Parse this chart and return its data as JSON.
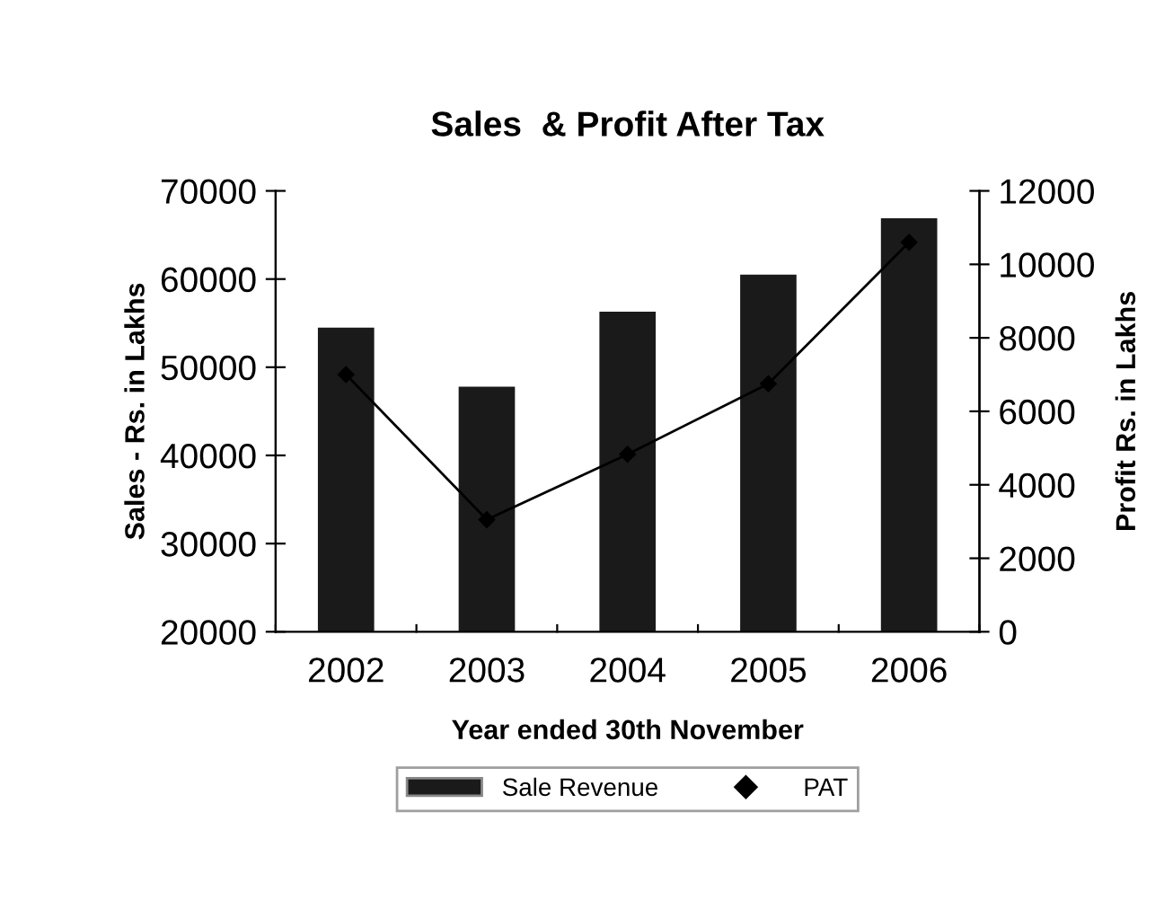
{
  "chart_data": {
    "type": "bar",
    "title": "Sales  & Profit After Tax",
    "xlabel": "Year ended 30th November",
    "ylabel": "Sales - Rs. in Lakhs",
    "y2label": "Profit Rs. in Lakhs",
    "categories": [
      "2002",
      "2003",
      "2004",
      "2005",
      "2006"
    ],
    "series": [
      {
        "name": "Sale Revenue",
        "color": "#1a1a1a",
        "values": [
          54500,
          47800,
          56300,
          60500,
          66900
        ]
      },
      {
        "name": "PAT",
        "type": "line",
        "axis": "y2",
        "color": "#000000",
        "marker": "diamond",
        "values": [
          7000,
          3050,
          4830,
          6750,
          10600
        ]
      }
    ],
    "ylim": [
      20000,
      70000
    ],
    "yticks": [
      20000,
      30000,
      40000,
      50000,
      60000,
      70000
    ],
    "y2lim": [
      0,
      12000
    ],
    "y2ticks": [
      0,
      2000,
      4000,
      6000,
      8000,
      10000,
      12000
    ],
    "grid": false,
    "legend": "bottom"
  }
}
